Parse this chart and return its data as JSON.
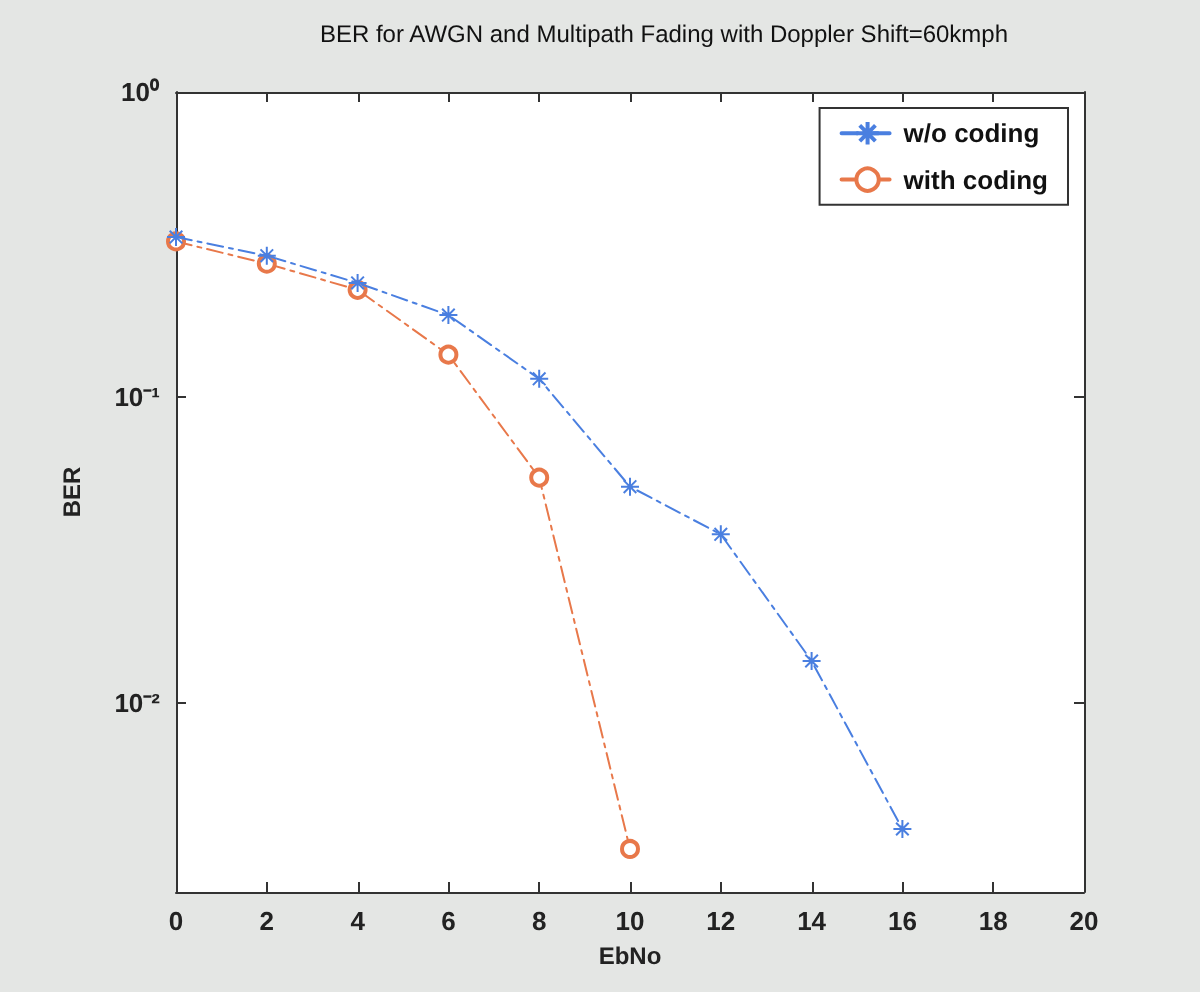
{
  "chart_data": {
    "type": "line",
    "title": "BER for AWGN and Multipath Fading with Doppler Shift=60kmph",
    "xlabel": "EbNo",
    "ylabel": "BER",
    "x": [
      0,
      2,
      4,
      6,
      8,
      10,
      12,
      14,
      16
    ],
    "series": [
      {
        "name": "w/o coding",
        "color": "#4a7fe0",
        "marker": "cross",
        "values": [
          0.335,
          0.291,
          0.237,
          0.186,
          0.115,
          0.051,
          0.0356,
          0.0137,
          0.00386
        ]
      },
      {
        "name": "with coding",
        "color": "#e8784a",
        "marker": "circle",
        "x": [
          0,
          2,
          4,
          6,
          8,
          10
        ],
        "values": [
          0.324,
          0.274,
          0.225,
          0.138,
          0.0546,
          0.00332
        ]
      }
    ],
    "xlim": [
      0,
      20
    ],
    "xticks": [
      0,
      2,
      4,
      6,
      8,
      10,
      12,
      14,
      16,
      18,
      20
    ],
    "ylim": [
      0.0024,
      1
    ],
    "yticks": [
      {
        "value": 0.01,
        "label": "10⁻²"
      },
      {
        "value": 0.1,
        "label": "10⁻¹"
      },
      {
        "value": 1,
        "label": "10⁰"
      }
    ],
    "log": "y",
    "grid": false,
    "legend": "top right",
    "line_style": "dashed"
  }
}
